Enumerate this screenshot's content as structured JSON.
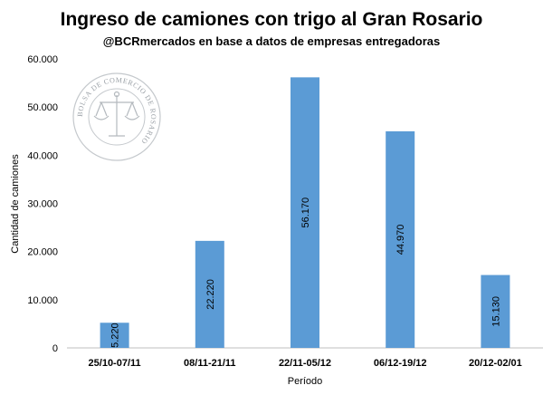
{
  "chart_data": {
    "type": "bar",
    "title": "Ingreso de camiones con trigo al Gran Rosario",
    "subtitle": "@BCRmercados en base a datos de empresas entregadoras",
    "xlabel": "Período",
    "ylabel": "Cantidad de camiones",
    "categories": [
      "25/10-07/11",
      "08/11-21/11",
      "22/11-05/12",
      "06/12-19/12",
      "20/12-02/01"
    ],
    "values": [
      5220,
      22220,
      56170,
      44970,
      15130
    ],
    "value_labels": [
      "5.220",
      "22.220",
      "56.170",
      "44.970",
      "15.130"
    ],
    "ylim": [
      0,
      60000
    ],
    "yticks": [
      0,
      10000,
      20000,
      30000,
      40000,
      50000,
      60000
    ],
    "ytick_labels": [
      "0",
      "10.000",
      "20.000",
      "30.000",
      "40.000",
      "50.000",
      "60.000"
    ],
    "grid": false,
    "legend": "none",
    "bar_color": "#5b9bd5"
  },
  "watermark": {
    "seal_text": "BOLSA DE COMERCIO DE ROSARIO",
    "icon": "scales-of-justice-seal-icon"
  }
}
